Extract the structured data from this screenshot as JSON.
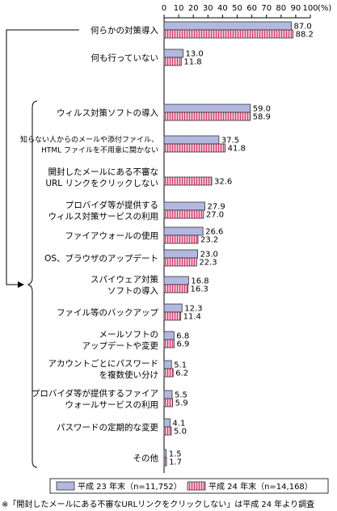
{
  "chart_data": {
    "type": "bar",
    "orientation": "horizontal",
    "xlim": [
      0,
      100
    ],
    "ticks": [
      "0",
      "10",
      "20",
      "30",
      "40",
      "50",
      "60",
      "70",
      "80",
      "90",
      "100"
    ],
    "unit": "(%)",
    "categories": [
      "何らかの対策導入",
      "何も行っていない",
      "ウィルス対策ソフトの導入",
      "知らない人からのメールや添付ファイル、HTML ファイルを不用意に開かない",
      "開封したメールにある不審な URL リンクをクリックしない",
      "プロバイダ等が提供するウィルス対策サービスの利用",
      "ファイアウォールの使用",
      "OS、ブラウザのアップデート",
      "スパイウェア対策ソフトの導入",
      "ファイル等のバックアップ",
      "メールソフトのアップデートや変更",
      "アカウントごとにパスワードを複数使い分け",
      "プロバイダ等が提供するファイアウォールサービスの利用",
      "パスワードの定期的な変更",
      "その他"
    ],
    "category_lines": [
      [
        "何らかの対策導入"
      ],
      [
        "何も行っていない"
      ],
      [
        "ウィルス対策ソフトの導入"
      ],
      [
        "知らない人からのメールや添付ファイル、",
        "HTML ファイルを不用意に開かない"
      ],
      [
        "開封したメールにある不審な",
        "URL リンクをクリックしない"
      ],
      [
        "プロバイダ等が提供する",
        "ウィルス対策サービスの利用"
      ],
      [
        "ファイアウォールの使用"
      ],
      [
        "OS、ブラウザのアップデート"
      ],
      [
        "スパイウェア対策",
        "ソフトの導入"
      ],
      [
        "ファイル等のバックアップ"
      ],
      [
        "メールソフトの",
        "アップデートや変更"
      ],
      [
        "アカウントごとにパスワード",
        "を複数使い分け"
      ],
      [
        "プロバイダ等が提供するファイア",
        "ウォールサービスの利用"
      ],
      [
        "パスワードの定期的な変更"
      ],
      [
        "その他"
      ]
    ],
    "series": [
      {
        "name": "平成 23 年末（n=11,752）",
        "values": [
          87.0,
          13.0,
          59.0,
          37.5,
          null,
          27.9,
          26.6,
          23.0,
          16.8,
          12.3,
          6.8,
          5.1,
          5.5,
          4.1,
          1.5
        ],
        "labels": [
          "87.0",
          "13.0",
          "59.0",
          "37.5",
          "",
          "27.9",
          "26.6",
          "23.0",
          "16.8",
          "12.3",
          "6.8",
          "5.1",
          "5.5",
          "4.1",
          "1.5"
        ]
      },
      {
        "name": "平成 24 年末（n=14,168）",
        "values": [
          88.2,
          11.8,
          58.9,
          41.8,
          32.6,
          27.0,
          23.2,
          22.3,
          16.3,
          11.4,
          6.9,
          6.2,
          5.9,
          5.0,
          1.7
        ],
        "labels": [
          "88.2",
          "11.8",
          "58.9",
          "41.8",
          "32.6",
          "27.0",
          "23.2",
          "22.3",
          "16.3",
          "11.4",
          "6.9",
          "6.2",
          "5.9",
          "5.0",
          "1.7"
        ]
      }
    ],
    "colors": {
      "series1": "#b3b8e0",
      "series2": "#f3b9cc",
      "series2_stripe": "#d13d6e"
    },
    "legend_position": "bottom-left",
    "footnote": "※「開封したメールにある不審なURLリンクをクリックしない」は平成 24 年より調査",
    "grid": false
  }
}
